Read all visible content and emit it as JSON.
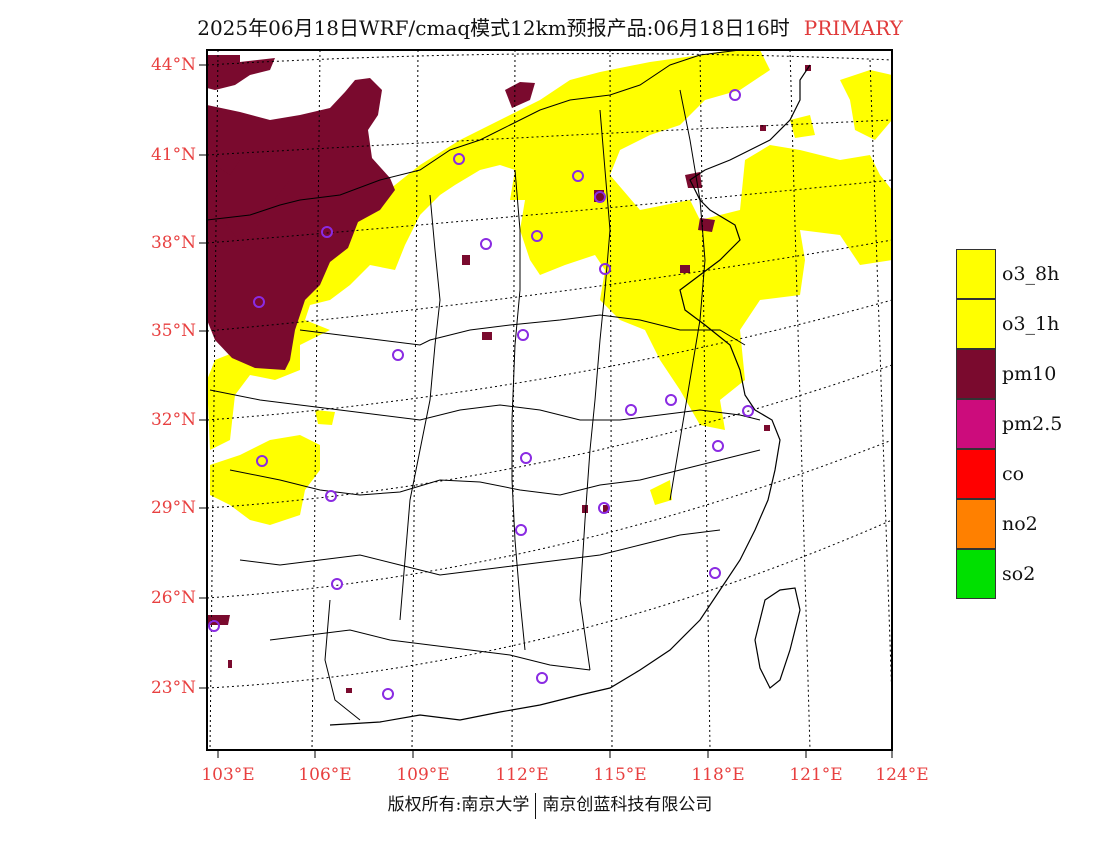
{
  "title": {
    "main": "2025年06月18日WRF/cmaq模式12km预报产品:06月18日16时",
    "tag": "PRIMARY"
  },
  "map": {
    "lat_labels": [
      "44°N",
      "41°N",
      "38°N",
      "35°N",
      "32°N",
      "29°N",
      "26°N",
      "23°N"
    ],
    "lon_labels": [
      "103°E",
      "106°E",
      "109°E",
      "112°E",
      "115°E",
      "118°E",
      "121°E",
      "124°E"
    ]
  },
  "legend": {
    "items": [
      {
        "label": "o3_8h",
        "color": "#ffff00"
      },
      {
        "label": "o3_1h",
        "color": "#ffff00"
      },
      {
        "label": "pm10",
        "color": "#7a0a2e"
      },
      {
        "label": "pm2.5",
        "color": "#cc0c7c"
      },
      {
        "label": "co",
        "color": "#ff0000"
      },
      {
        "label": "no2",
        "color": "#ff8000"
      },
      {
        "label": "so2",
        "color": "#00e000"
      }
    ]
  },
  "colors": {
    "o3": "#ffff00",
    "pm10": "#7a0a2e",
    "station": "#8a2be2",
    "axis_label": "#e84040"
  },
  "footer": {
    "left": "版权所有:南京大学",
    "right": "南京创蓝科技有限公司"
  }
}
